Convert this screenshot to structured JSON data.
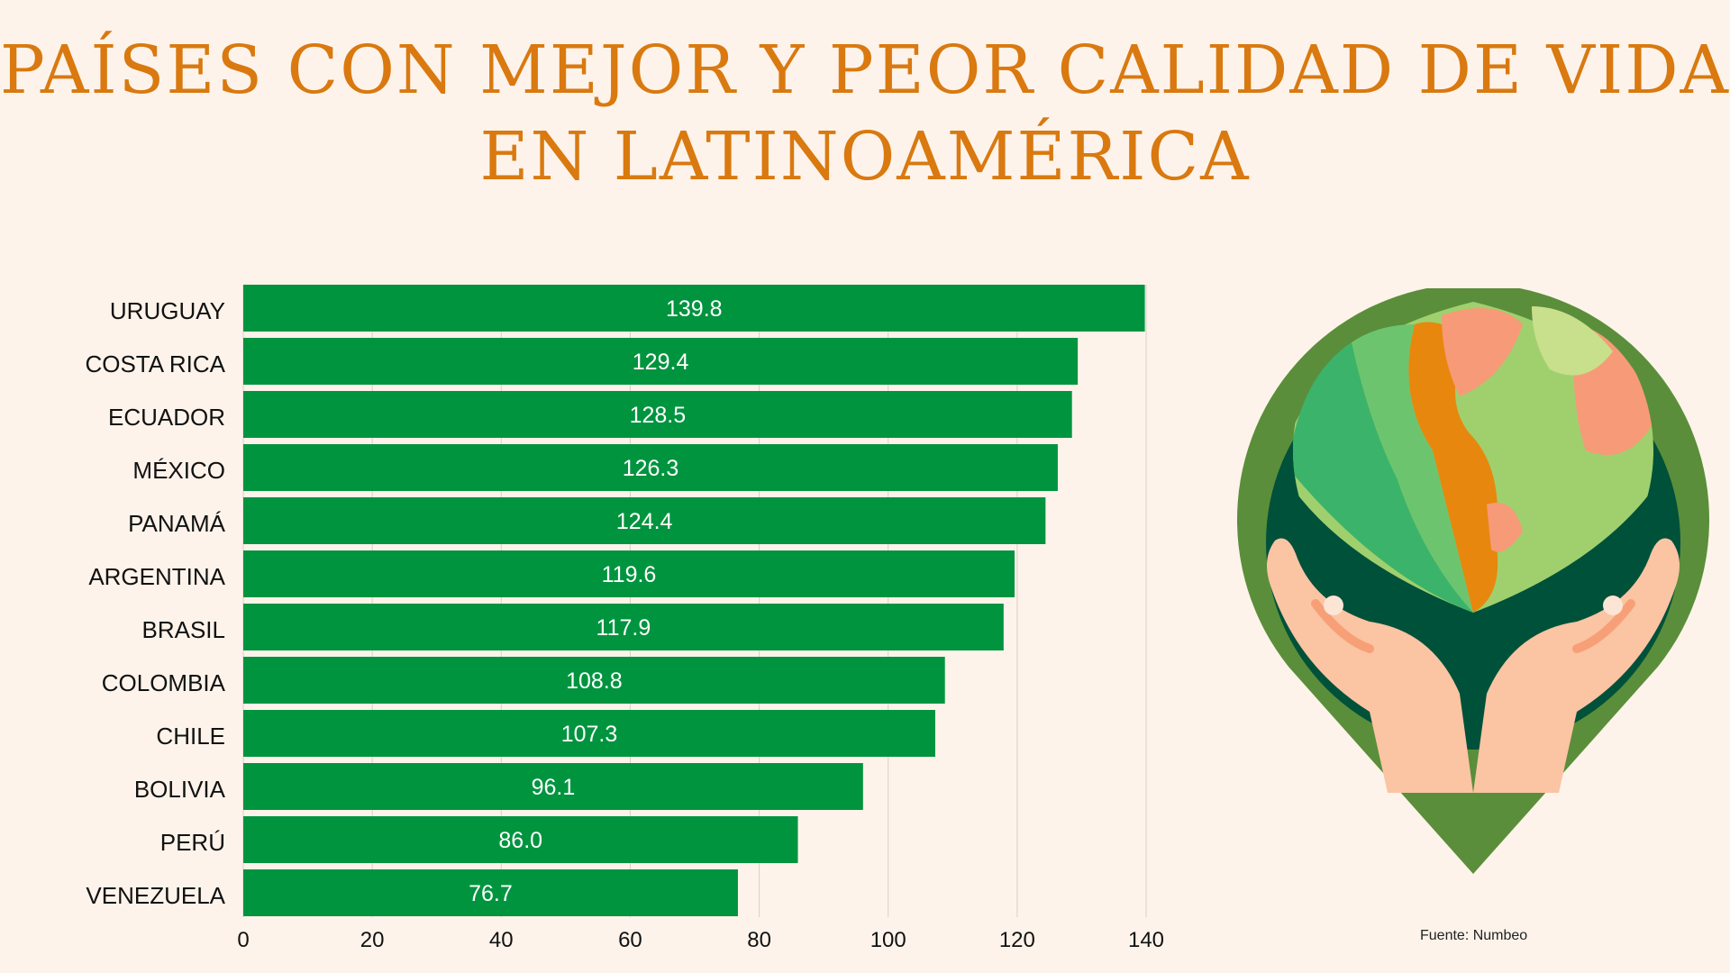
{
  "chart_data": {
    "type": "bar",
    "orientation": "horizontal",
    "title": "PAÍSES CON MEJOR Y PEOR CALIDAD DE VIDA EN LATINOAMÉRICA",
    "title_lines": [
      "PAÍSES CON MEJOR Y PEOR CALIDAD DE VIDA",
      "EN LATINOAMÉRICA"
    ],
    "categories": [
      "URUGUAY",
      "COSTA RICA",
      "ECUADOR",
      "MÉXICO",
      "PANAMÁ",
      "ARGENTINA",
      "BRASIL",
      "COLOMBIA",
      "CHILE",
      "BOLIVIA",
      "PERÚ",
      "VENEZUELA"
    ],
    "values": [
      139.8,
      129.4,
      128.5,
      126.3,
      124.4,
      119.6,
      117.9,
      108.8,
      107.3,
      96.1,
      86.0,
      76.7
    ],
    "data_labels": [
      "139.8",
      "129.4",
      "128.5",
      "126.3",
      "124.4",
      "119.6",
      "117.9",
      "108.8",
      "107.3",
      "96.1",
      "86.0",
      "76.7"
    ],
    "xlim": [
      0,
      140
    ],
    "xticks": [
      "0",
      "20",
      "40",
      "60",
      "80",
      "100",
      "120",
      "140"
    ],
    "grid": "vertical",
    "xlabel": "",
    "ylabel": "",
    "colors": {
      "bar": "#00943f",
      "title": "#d9790f",
      "background": "#fdf3ea"
    }
  },
  "source": "Fuente: Numbeo",
  "illustration": "hands-holding-globe-icon"
}
